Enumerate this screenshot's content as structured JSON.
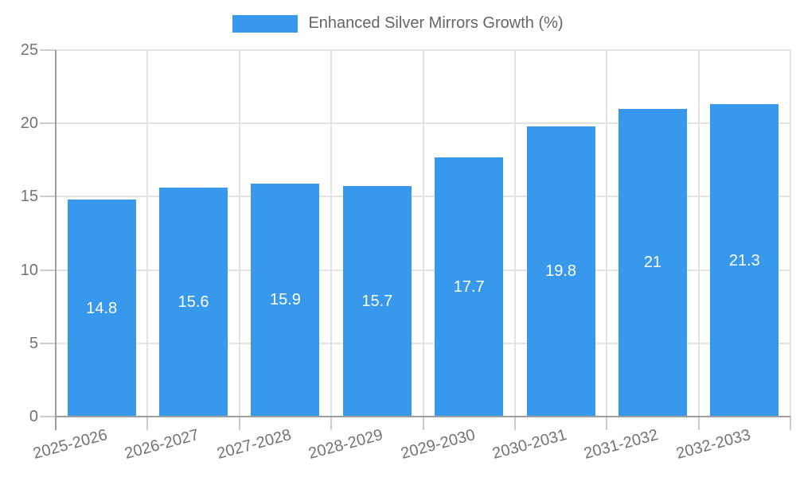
{
  "chart_data": {
    "type": "bar",
    "title": "",
    "legend": "Enhanced Silver Mirrors Growth (%)",
    "legend_position": "top",
    "categories": [
      "2025-2026",
      "2026-2027",
      "2027-2028",
      "2028-2029",
      "2029-2030",
      "2030-2031",
      "2031-2032",
      "2032-2033"
    ],
    "values": [
      14.8,
      15.6,
      15.9,
      15.7,
      17.7,
      19.8,
      21,
      21.3
    ],
    "value_labels": [
      "14.8",
      "15.6",
      "15.9",
      "15.7",
      "17.7",
      "19.8",
      "21",
      "21.3"
    ],
    "xlabel": "",
    "ylabel": "",
    "ylim": [
      0,
      25
    ],
    "yticks": [
      0,
      5,
      10,
      15,
      20,
      25
    ],
    "grid": true,
    "colors": {
      "bar": "#3898EC",
      "grid": "#e3e3e3",
      "axis": "#9e9e9e",
      "tick": "#cccccc",
      "tick_label": "#737373",
      "legend_text": "#666666",
      "bar_label": "#ffffff"
    }
  }
}
